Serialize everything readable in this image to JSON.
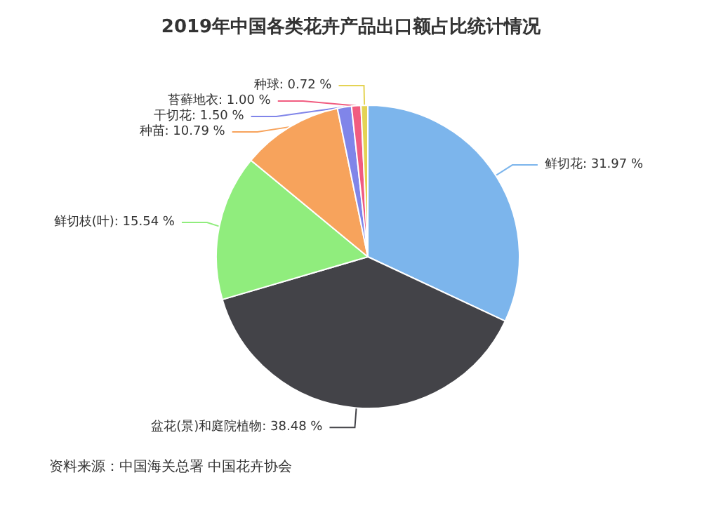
{
  "chart_data": {
    "type": "pie",
    "title": "2019年中国各类花卉产品出口额占比统计情况",
    "categories": [
      "鲜切花",
      "盆花(景)和庭院植物",
      "鲜切枝(叶)",
      "种苗",
      "干切花",
      "苔藓地衣",
      "种球"
    ],
    "values": [
      31.97,
      38.48,
      15.54,
      10.79,
      1.5,
      1.0,
      0.72
    ],
    "colors": [
      "#7cb5ec",
      "#434348",
      "#90ed7d",
      "#f7a35c",
      "#8085e9",
      "#f15c80",
      "#e4d354"
    ],
    "value_labels": [
      "31.97 %",
      "38.48 %",
      "15.54 %",
      "10.79 %",
      "1.50 %",
      "1.00 %",
      "0.72 %"
    ],
    "annotations": [
      "资料来源：中国海关总署 中国花卉协会"
    ]
  }
}
